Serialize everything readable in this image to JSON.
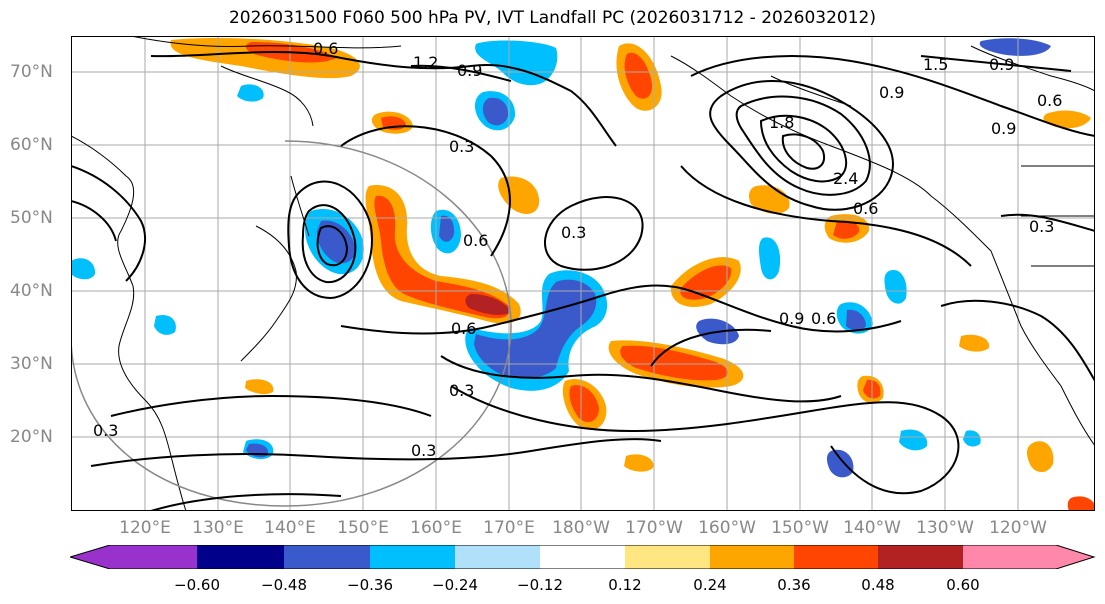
{
  "title": "2026031500 F060 500 hPa PV, IVT Landfall PC (2026031712 - 2026032012)",
  "lat_labels": [
    "70°N",
    "60°N",
    "50°N",
    "40°N",
    "30°N",
    "20°N"
  ],
  "lon_labels": [
    "120°E",
    "130°E",
    "140°E",
    "150°E",
    "160°E",
    "170°E",
    "180°W",
    "170°W",
    "160°W",
    "150°W",
    "140°W",
    "130°W",
    "120°W"
  ],
  "contour_labels": [
    "0.6",
    "1.2",
    "0.9",
    "1.5",
    "0.9",
    "0.6",
    "0.9",
    "1.8",
    "2.4",
    "0.3",
    "0.3",
    "0.9",
    "0.6",
    "0.6",
    "0.3",
    "0.6",
    "0.9",
    "0.6",
    "0.3",
    "0.3",
    "0.3"
  ],
  "colorbar": {
    "ticks": [
      "−0.60",
      "−0.48",
      "−0.36",
      "−0.24",
      "−0.12",
      "0.12",
      "0.24",
      "0.36",
      "0.48",
      "0.60"
    ],
    "colors": [
      "#9932cc",
      "#00008b",
      "#3a5acb",
      "#00bfff",
      "#b0e0fa",
      "#ffffff",
      "#ffe680",
      "#ffa500",
      "#ff4500",
      "#b22222",
      "#ff88aa"
    ]
  },
  "fill_colors": {
    "orange": "#ffa500",
    "red_orange": "#ff4500",
    "dark_red": "#b22222",
    "yellow": "#ffe680",
    "cyan": "#00bfff",
    "blue": "#3a5acb",
    "light_blue": "#b0e0fa"
  }
}
